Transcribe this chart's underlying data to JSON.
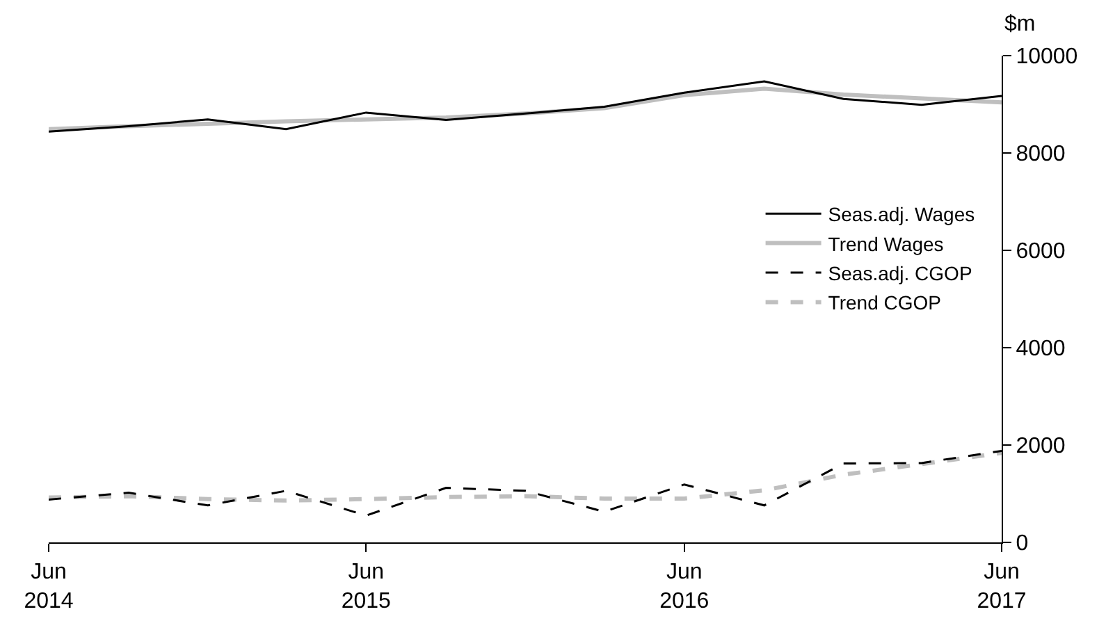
{
  "chart_data": {
    "type": "line",
    "ylabel": "$m",
    "x": [
      "2014-06",
      "2014-09",
      "2014-12",
      "2015-03",
      "2015-06",
      "2015-09",
      "2015-12",
      "2016-03",
      "2016-06",
      "2016-09",
      "2016-12",
      "2017-03",
      "2017-06"
    ],
    "series": [
      {
        "name": "Seas.adj. Wages",
        "color": "#000000",
        "line_style": "solid",
        "values": [
          8440,
          8550,
          8690,
          8490,
          8830,
          8680,
          8810,
          8950,
          9240,
          9470,
          9110,
          8990,
          9170
        ]
      },
      {
        "name": "Trend Wages",
        "color": "#bfbfbf",
        "line_style": "solid",
        "values": [
          8490,
          8550,
          8600,
          8650,
          8690,
          8730,
          8810,
          8920,
          9190,
          9320,
          9200,
          9120,
          9040
        ]
      },
      {
        "name": "Seas.adj. CGOP",
        "color": "#000000",
        "line_style": "dashed",
        "values": [
          880,
          1020,
          760,
          1060,
          550,
          1120,
          1060,
          630,
          1190,
          760,
          1620,
          1630,
          1880
        ]
      },
      {
        "name": "Trend CGOP",
        "color": "#bfbfbf",
        "line_style": "dashed",
        "values": [
          920,
          950,
          890,
          860,
          890,
          930,
          950,
          900,
          900,
          1070,
          1390,
          1610,
          1840
        ]
      }
    ],
    "xlim": [
      "2014-06",
      "2017-06"
    ],
    "xticks": [
      {
        "value": "2014-06",
        "label": "Jun\n2014"
      },
      {
        "value": "2015-06",
        "label": "Jun\n2015"
      },
      {
        "value": "2016-06",
        "label": "Jun\n2016"
      },
      {
        "value": "2017-06",
        "label": "Jun\n2017"
      }
    ],
    "ylim": [
      0,
      10000
    ],
    "yticks": [
      0,
      2000,
      4000,
      6000,
      8000,
      10000
    ],
    "grid": false,
    "legend": "right",
    "marker": "none"
  }
}
